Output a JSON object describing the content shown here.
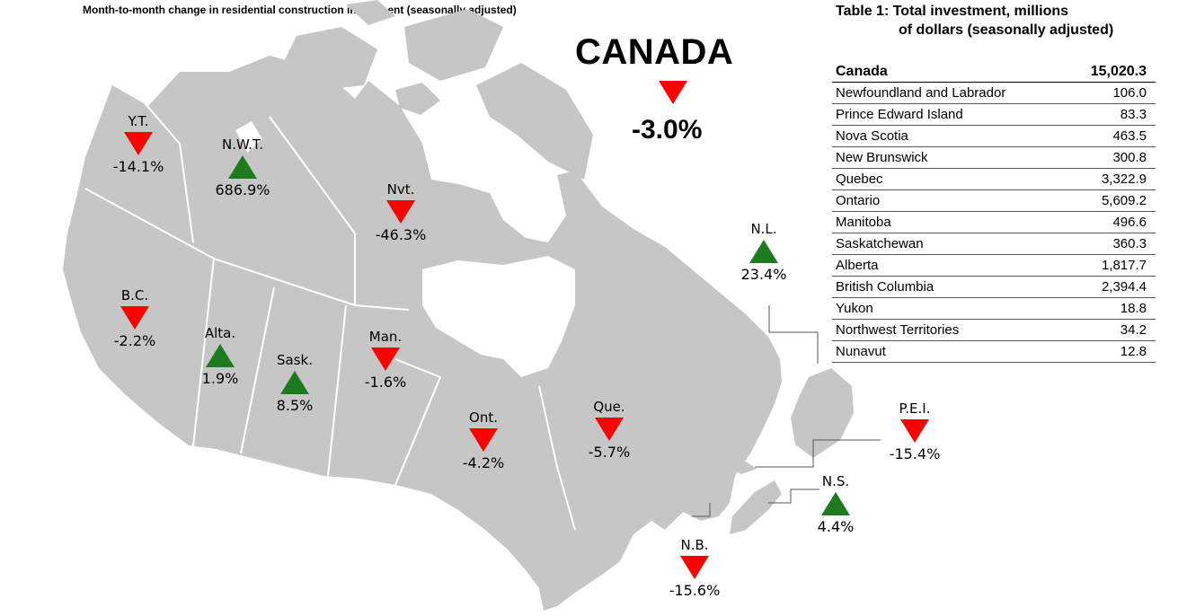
{
  "map_title": "Month-to-month change in residential construction investment (seasonally adjusted)",
  "national": {
    "name": "CANADA",
    "direction": "down",
    "change": "-3.0%"
  },
  "colors": {
    "up": "#1e7a1e",
    "down": "#ff0000",
    "land": "#c6c6c6"
  },
  "regions": [
    {
      "key": "yt",
      "label": "Y.T.",
      "change": "-14.1%",
      "direction": "down"
    },
    {
      "key": "nwt",
      "label": "N.W.T.",
      "change": "686.9%",
      "direction": "up"
    },
    {
      "key": "nvt",
      "label": "Nvt.",
      "change": "-46.3%",
      "direction": "down"
    },
    {
      "key": "bc",
      "label": "B.C.",
      "change": "-2.2%",
      "direction": "down"
    },
    {
      "key": "alta",
      "label": "Alta.",
      "change": "1.9%",
      "direction": "up"
    },
    {
      "key": "sask",
      "label": "Sask.",
      "change": "8.5%",
      "direction": "up"
    },
    {
      "key": "man",
      "label": "Man.",
      "change": "-1.6%",
      "direction": "down"
    },
    {
      "key": "ont",
      "label": "Ont.",
      "change": "-4.2%",
      "direction": "down"
    },
    {
      "key": "que",
      "label": "Que.",
      "change": "-5.7%",
      "direction": "down"
    },
    {
      "key": "nl",
      "label": "N.L.",
      "change": "23.4%",
      "direction": "up"
    },
    {
      "key": "pei",
      "label": "P.E.I.",
      "change": "-15.4%",
      "direction": "down"
    },
    {
      "key": "ns",
      "label": "N.S.",
      "change": "4.4%",
      "direction": "up"
    },
    {
      "key": "nb",
      "label": "N.B.",
      "change": "-15.6%",
      "direction": "down"
    }
  ],
  "table": {
    "title_line1": "Table 1: Total investment, millions",
    "title_line2": "of dollars (seasonally adjusted)",
    "header": {
      "name": "Canada",
      "value": "15,020.3"
    },
    "rows": [
      {
        "name": "Newfoundland and Labrador",
        "value": "106.0"
      },
      {
        "name": "Prince Edward Island",
        "value": "83.3"
      },
      {
        "name": "Nova Scotia",
        "value": "463.5"
      },
      {
        "name": "New Brunswick",
        "value": "300.8"
      },
      {
        "name": "Quebec",
        "value": "3,322.9"
      },
      {
        "name": "Ontario",
        "value": "5,609.2"
      },
      {
        "name": "Manitoba",
        "value": "496.6"
      },
      {
        "name": "Saskatchewan",
        "value": "360.3"
      },
      {
        "name": "Alberta",
        "value": "1,817.7"
      },
      {
        "name": "British Columbia",
        "value": "2,394.4"
      },
      {
        "name": "Yukon",
        "value": "18.8"
      },
      {
        "name": "Northwest Territories",
        "value": "34.2"
      },
      {
        "name": "Nunavut",
        "value": "12.8"
      }
    ]
  }
}
